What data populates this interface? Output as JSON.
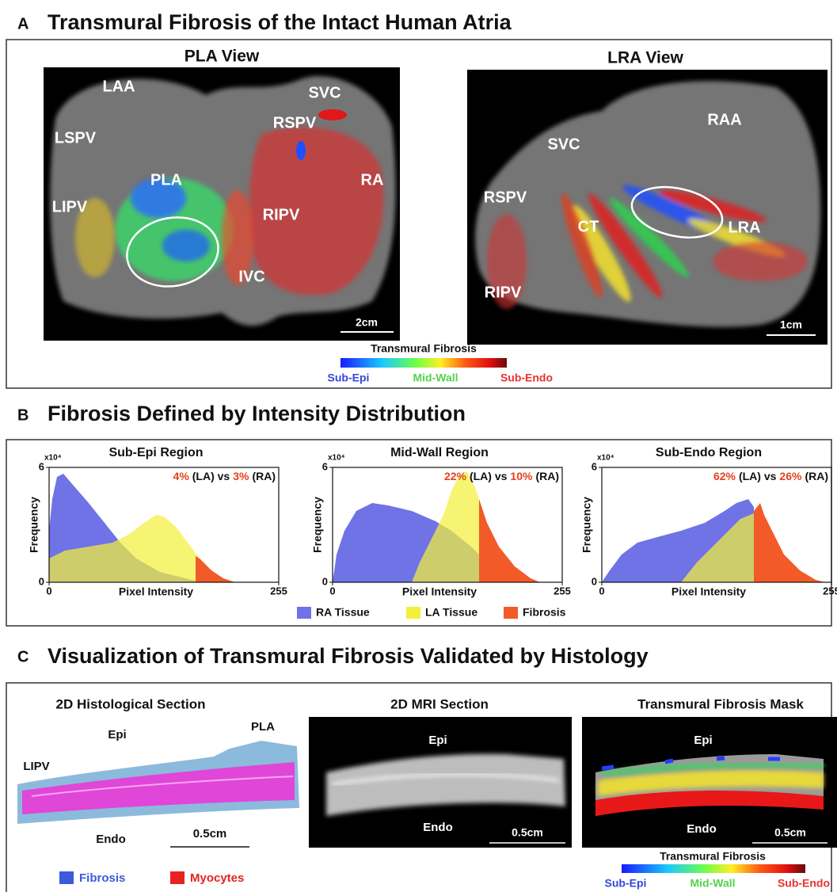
{
  "panel_a": {
    "letter": "A",
    "title": "Transmural Fibrosis of the Intact Human Atria",
    "pla_view": {
      "title": "PLA View",
      "labels": [
        "LAA",
        "SVC",
        "LSPV",
        "RSPV",
        "PLA",
        "RA",
        "LIPV",
        "RIPV",
        "IVC"
      ],
      "scale": "2cm"
    },
    "lra_view": {
      "title": "LRA View",
      "labels": [
        "RAA",
        "SVC",
        "RSPV",
        "CT",
        "LRA",
        "RIPV"
      ],
      "scale": "1cm"
    },
    "colorbar": {
      "title": "Transmural Fibrosis",
      "low": "Sub-Epi",
      "mid": "Mid-Wall",
      "high": "Sub-Endo"
    }
  },
  "panel_b": {
    "letter": "B",
    "title": "Fibrosis Defined by Intensity Distribution",
    "axes": {
      "ylabel": "Frequency",
      "xlabel": "Pixel Intensity",
      "y_multiplier": "x10⁴",
      "ylim": [
        0,
        6
      ],
      "yticks": [
        0,
        6
      ],
      "xlim": [
        0,
        255
      ],
      "xticks": [
        0,
        255
      ]
    },
    "charts": [
      {
        "title": "Sub-Epi Region",
        "la_value": "4%",
        "la_text": "(LA) vs",
        "ra_value": "3%",
        "ra_text": "(RA)"
      },
      {
        "title": "Mid-Wall Region",
        "la_value": "22%",
        "la_text": "(LA) vs",
        "ra_value": "10%",
        "ra_text": "(RA)"
      },
      {
        "title": "Sub-Endo Region",
        "la_value": "62%",
        "la_text": "(LA) vs",
        "ra_value": "26%",
        "ra_text": "(RA)"
      }
    ],
    "legend": [
      {
        "name": "RA Tissue",
        "color": "#6f73e6"
      },
      {
        "name": "LA Tissue",
        "color": "#f2f03c"
      },
      {
        "name": "Fibrosis",
        "color": "#f25a28"
      }
    ]
  },
  "panel_c": {
    "letter": "C",
    "title": "Visualization of Transmural Fibrosis Validated by Histology",
    "histology": {
      "title": "2D Histological Section",
      "labels": [
        "Epi",
        "PLA",
        "LIPV",
        "Endo"
      ],
      "scale": "0.5cm",
      "legend": [
        {
          "name": "Fibrosis",
          "color": "#3b5bdb"
        },
        {
          "name": "Myocytes",
          "color": "#e8231f"
        }
      ]
    },
    "mri": {
      "title": "2D MRI Section",
      "epi": "Epi",
      "endo": "Endo",
      "scale": "0.5cm"
    },
    "mask": {
      "title": "Transmural Fibrosis Mask",
      "epi": "Epi",
      "endo": "Endo",
      "scale": "0.5cm",
      "colorbar": {
        "title": "Transmural Fibrosis",
        "low": "Sub-Epi",
        "mid": "Mid-Wall",
        "high": "Sub-Endo"
      }
    }
  }
}
